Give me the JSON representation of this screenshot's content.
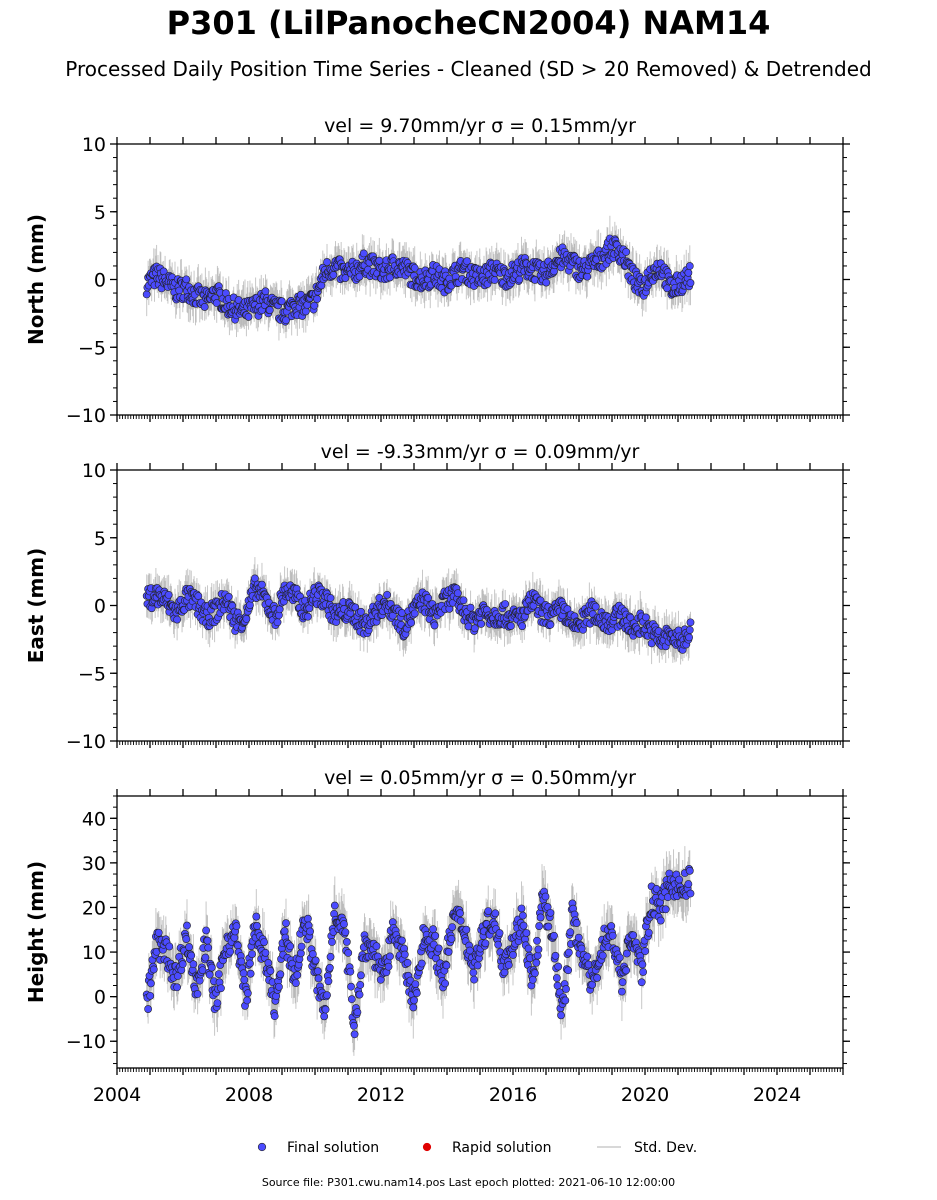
{
  "title": "P301 (LilPanocheCN2004) NAM14",
  "subtitle": "Processed Daily Position Time Series - Cleaned (SD > 20 Removed) & Detrended",
  "source_note": "Source file: P301.cwu.nam14.pos  Last epoch plotted: 2021-06-10 12:00:00",
  "legend": [
    {
      "label": "Final solution",
      "color": "#4b4bff",
      "kind": "marker"
    },
    {
      "label": "Rapid solution",
      "color": "#e00000",
      "kind": "marker"
    },
    {
      "label": "Std. Dev.",
      "color": "#cccccc",
      "kind": "line"
    }
  ],
  "colors": {
    "final": "#4b4bff",
    "rapid": "#e00000",
    "stddev": "#999999",
    "marker_edge": "#222222"
  },
  "chart_data": [
    {
      "type": "scatter",
      "panel": "north",
      "title": "vel = 9.70mm/yr   σ = 0.15mm/yr",
      "ylabel": "North (mm)",
      "xlim": [
        2004.0,
        2026.0
      ],
      "ylim": [
        -10,
        10
      ],
      "yticks": [
        -10,
        -5,
        0,
        5,
        10
      ],
      "ytick_labels": [
        "−10",
        "−5",
        "0",
        "5",
        "10"
      ],
      "series": [
        {
          "name": "Final solution",
          "x": [
            2004.9,
            2005.2,
            2005.5,
            2005.8,
            2006.1,
            2006.4,
            2006.7,
            2007.0,
            2007.3,
            2007.6,
            2007.9,
            2008.2,
            2008.5,
            2008.8,
            2009.1,
            2009.4,
            2009.7,
            2010.0,
            2010.3,
            2010.6,
            2010.9,
            2011.2,
            2011.5,
            2011.8,
            2012.1,
            2012.4,
            2012.7,
            2013.0,
            2013.3,
            2013.6,
            2013.9,
            2014.2,
            2014.5,
            2014.8,
            2015.1,
            2015.4,
            2015.7,
            2016.0,
            2016.3,
            2016.6,
            2016.9,
            2017.2,
            2017.5,
            2017.8,
            2018.1,
            2018.4,
            2018.7,
            2019.0,
            2019.3,
            2019.6,
            2019.9,
            2020.2,
            2020.5,
            2020.8,
            2021.1,
            2021.4
          ],
          "y": [
            -0.3,
            0.3,
            -0.2,
            -0.8,
            -0.6,
            -1.2,
            -1.6,
            -1.0,
            -1.8,
            -2.2,
            -2.4,
            -2.0,
            -1.6,
            -2.2,
            -2.4,
            -1.8,
            -2.0,
            -1.4,
            0.6,
            1.0,
            0.4,
            0.6,
            1.2,
            0.9,
            0.5,
            1.1,
            0.8,
            0.2,
            0.0,
            0.4,
            -0.2,
            0.3,
            0.8,
            0.2,
            0.1,
            0.7,
            0.2,
            0.4,
            0.9,
            0.8,
            0.2,
            1.1,
            1.6,
            1.2,
            0.6,
            1.1,
            1.6,
            2.4,
            2.0,
            0.3,
            -0.8,
            0.6,
            0.9,
            -0.8,
            -0.2,
            0.3
          ]
        }
      ]
    },
    {
      "type": "scatter",
      "panel": "east",
      "title": "vel = -9.33mm/yr   σ = 0.09mm/yr",
      "ylabel": "East (mm)",
      "xlim": [
        2004.0,
        2026.0
      ],
      "ylim": [
        -10,
        10
      ],
      "yticks": [
        -10,
        -5,
        0,
        5,
        10
      ],
      "ytick_labels": [
        "−10",
        "−5",
        "0",
        "5",
        "10"
      ],
      "series": [
        {
          "name": "Final solution",
          "x": [
            2004.9,
            2005.2,
            2005.5,
            2005.8,
            2006.1,
            2006.4,
            2006.7,
            2007.0,
            2007.3,
            2007.6,
            2007.9,
            2008.2,
            2008.5,
            2008.8,
            2009.1,
            2009.4,
            2009.7,
            2010.0,
            2010.3,
            2010.6,
            2010.9,
            2011.2,
            2011.5,
            2011.8,
            2012.1,
            2012.4,
            2012.7,
            2013.0,
            2013.3,
            2013.6,
            2013.9,
            2014.2,
            2014.5,
            2014.8,
            2015.1,
            2015.4,
            2015.7,
            2016.0,
            2016.3,
            2016.6,
            2016.9,
            2017.2,
            2017.5,
            2017.8,
            2018.1,
            2018.4,
            2018.7,
            2019.0,
            2019.3,
            2019.6,
            2019.9,
            2020.2,
            2020.5,
            2020.8,
            2021.1,
            2021.4
          ],
          "y": [
            0.4,
            0.8,
            0.3,
            -0.6,
            0.6,
            0.2,
            -0.9,
            -0.4,
            0.5,
            -1.2,
            -0.8,
            1.4,
            0.4,
            -0.9,
            1.2,
            0.6,
            -0.4,
            0.8,
            0.6,
            -0.8,
            -0.4,
            -0.6,
            -1.6,
            -0.6,
            0.2,
            -0.4,
            -1.6,
            -0.4,
            0.4,
            -0.8,
            0.2,
            0.8,
            -0.3,
            -1.2,
            -0.4,
            -0.8,
            -0.6,
            -1.0,
            -0.8,
            0.4,
            -0.6,
            -0.8,
            -0.2,
            -1.6,
            -1.2,
            -0.4,
            -1.0,
            -1.2,
            -0.6,
            -1.8,
            -1.2,
            -2.0,
            -2.6,
            -2.2,
            -2.8,
            -1.6
          ]
        }
      ]
    },
    {
      "type": "scatter",
      "panel": "height",
      "title": "vel = 0.05mm/yr   σ = 0.50mm/yr",
      "ylabel": "Height (mm)",
      "xlim": [
        2004.0,
        2026.0
      ],
      "ylim": [
        -16,
        45
      ],
      "yticks": [
        -10,
        0,
        10,
        20,
        30,
        40
      ],
      "ytick_labels": [
        "−10",
        "0",
        "10",
        "20",
        "30",
        "40"
      ],
      "xticks": [
        2004,
        2008,
        2012,
        2016,
        2020,
        2024
      ],
      "xtick_labels": [
        "2004",
        "2008",
        "2012",
        "2016",
        "2020",
        "2024"
      ],
      "series": [
        {
          "name": "Final solution",
          "x": [
            2004.9,
            2005.2,
            2005.5,
            2005.8,
            2006.1,
            2006.4,
            2006.7,
            2007.0,
            2007.3,
            2007.6,
            2007.9,
            2008.2,
            2008.5,
            2008.8,
            2009.1,
            2009.4,
            2009.7,
            2010.0,
            2010.3,
            2010.6,
            2010.9,
            2011.2,
            2011.5,
            2011.8,
            2012.1,
            2012.4,
            2012.7,
            2013.0,
            2013.3,
            2013.6,
            2013.9,
            2014.2,
            2014.5,
            2014.8,
            2015.1,
            2015.4,
            2015.7,
            2016.0,
            2016.3,
            2016.6,
            2016.9,
            2017.2,
            2017.5,
            2017.8,
            2018.1,
            2018.4,
            2018.7,
            2019.0,
            2019.3,
            2019.6,
            2019.9,
            2020.2,
            2020.5,
            2020.8,
            2021.1,
            2021.4
          ],
          "y": [
            -2,
            12,
            10,
            4,
            14,
            2,
            12,
            -2,
            12,
            14,
            0,
            16,
            8,
            -2,
            14,
            4,
            18,
            6,
            -4,
            20,
            14,
            -6,
            12,
            10,
            4,
            16,
            8,
            -2,
            14,
            12,
            4,
            18,
            16,
            6,
            14,
            18,
            8,
            12,
            18,
            2,
            22,
            14,
            -4,
            18,
            10,
            2,
            12,
            14,
            4,
            14,
            6,
            22,
            20,
            26,
            24,
            26
          ]
        }
      ]
    }
  ]
}
